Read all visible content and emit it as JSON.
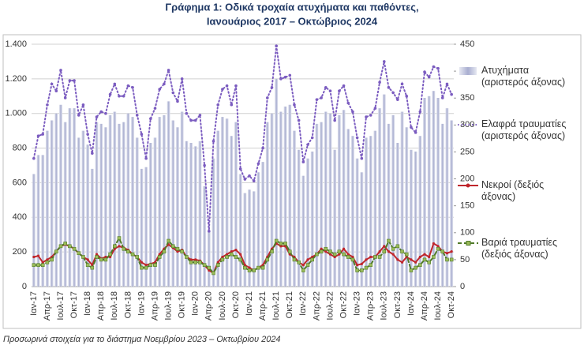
{
  "chart_data": {
    "type": "bar_line",
    "title": "Γράφημα 1: Οδικά τροχαία ατυχήματα και παθόντες,",
    "subtitle": "Ιανουάριος 2017 – Οκτώβριος 2024",
    "note": "Προσωρινά στοιχεία για το διάστημα Νοεμβρίου 2023 – Οκτωβρίου 2024",
    "categories": [
      "Ιαν-17",
      null,
      null,
      "Απρ-17",
      null,
      null,
      "Ιουλ-17",
      null,
      null,
      "Οκτ-17",
      null,
      null,
      "Ιαν-18",
      null,
      null,
      "Απρ-18",
      null,
      null,
      "Ιουλ-18",
      null,
      null,
      "Οκτ-18",
      null,
      null,
      "Ιαν-19",
      null,
      null,
      "Απρ-19",
      null,
      null,
      "Ιουλ-19",
      null,
      null,
      "Οκτ-19",
      null,
      null,
      "Ιαν-20",
      null,
      null,
      "Απρ-20",
      null,
      null,
      "Ιουλ-20",
      null,
      null,
      "Οκτ-20",
      null,
      null,
      "Ιαν-21",
      null,
      null,
      "Απρ-21",
      null,
      null,
      "Ιουλ-21",
      null,
      null,
      "Οκτ-21",
      null,
      null,
      "Ιαν-22",
      null,
      null,
      "Απρ-22",
      null,
      null,
      "Ιουλ-22",
      null,
      null,
      "Οκτ-22",
      null,
      null,
      "Ιαν-23",
      null,
      null,
      "Απρ-23",
      null,
      null,
      "Ιουλ-23",
      null,
      null,
      "Οκτ-23",
      null,
      null,
      "Ιαν-24",
      null,
      null,
      "Απρ-24",
      null,
      null,
      "Ιουλ-24",
      null,
      null,
      "Οκτ-24"
    ],
    "series": [
      {
        "name": "Ατυχήματα (αριστερός άξονας)",
        "kind": "bar",
        "axis": "y",
        "color": "#a9aed0",
        "values": [
          650,
          760,
          760,
          900,
          960,
          1000,
          1050,
          950,
          1030,
          1030,
          860,
          900,
          820,
          680,
          950,
          940,
          920,
          990,
          1010,
          940,
          950,
          1000,
          980,
          860,
          680,
          690,
          830,
          860,
          980,
          990,
          1070,
          960,
          920,
          1010,
          840,
          830,
          810,
          840,
          580,
          320,
          740,
          900,
          980,
          970,
          870,
          950,
          650,
          540,
          560,
          550,
          660,
          720,
          950,
          1000,
          1200,
          1010,
          1040,
          1050,
          900,
          790,
          640,
          740,
          780,
          940,
          950,
          1010,
          1000,
          790,
          990,
          1020,
          910,
          870,
          740,
          660,
          860,
          870,
          900,
          1030,
          1110,
          940,
          990,
          830,
          1010,
          920,
          790,
          780,
          870,
          1090,
          1100,
          1130,
          1090,
          940,
          1030,
          960
        ]
      },
      {
        "name": "Ελαφρά τραυματίες (αριστερός άξονας)",
        "kind": "dotted",
        "axis": "y",
        "color": "#7b5cc0",
        "values": [
          740,
          870,
          880,
          1050,
          1170,
          1130,
          1250,
          1090,
          1190,
          1190,
          990,
          1050,
          880,
          770,
          980,
          1010,
          1000,
          1110,
          1170,
          1100,
          1100,
          1160,
          1150,
          990,
          880,
          740,
          970,
          1030,
          1140,
          1170,
          1250,
          1120,
          1070,
          1200,
          1000,
          960,
          960,
          990,
          700,
          320,
          840,
          1050,
          1140,
          1160,
          1050,
          1160,
          680,
          620,
          640,
          610,
          710,
          800,
          1090,
          1150,
          1390,
          1200,
          1210,
          1220,
          1050,
          960,
          720,
          820,
          860,
          1080,
          1090,
          1150,
          1130,
          960,
          1130,
          1160,
          1060,
          1010,
          860,
          740,
          980,
          990,
          1030,
          1180,
          1300,
          1150,
          1120,
          1080,
          1170,
          1100,
          920,
          890,
          1010,
          1240,
          1210,
          1270,
          1260,
          1090,
          1170,
          1110
        ]
      },
      {
        "name": "Νεκροί (δεξιός άξονας)",
        "kind": "solid",
        "axis": "y2",
        "color": "#c0262c",
        "values": [
          55,
          57,
          45,
          50,
          55,
          65,
          75,
          78,
          75,
          70,
          62,
          55,
          50,
          40,
          60,
          52,
          55,
          55,
          70,
          75,
          72,
          68,
          60,
          55,
          45,
          40,
          42,
          45,
          60,
          70,
          78,
          72,
          65,
          68,
          55,
          50,
          50,
          48,
          40,
          30,
          25,
          45,
          55,
          60,
          65,
          68,
          60,
          40,
          35,
          30,
          35,
          40,
          55,
          70,
          80,
          75,
          75,
          60,
          55,
          45,
          40,
          50,
          55,
          60,
          70,
          65,
          60,
          55,
          60,
          70,
          60,
          55,
          40,
          42,
          50,
          55,
          55,
          65,
          75,
          65,
          60,
          50,
          45,
          55,
          50,
          45,
          55,
          60,
          55,
          80,
          75,
          65,
          62,
          65
        ]
      },
      {
        "name": "Βαριά τραυματίες (δεξιός άξονας)",
        "kind": "dashed",
        "axis": "y2",
        "color": "#4f7a28",
        "values": [
          40,
          40,
          40,
          45,
          50,
          65,
          75,
          80,
          75,
          70,
          62,
          55,
          40,
          35,
          55,
          50,
          50,
          60,
          75,
          90,
          70,
          65,
          60,
          55,
          35,
          35,
          40,
          40,
          55,
          65,
          85,
          75,
          70,
          65,
          55,
          45,
          45,
          45,
          40,
          35,
          25,
          40,
          50,
          55,
          60,
          55,
          50,
          35,
          30,
          30,
          35,
          35,
          50,
          65,
          85,
          80,
          80,
          65,
          50,
          45,
          30,
          40,
          50,
          60,
          65,
          70,
          65,
          60,
          65,
          60,
          55,
          50,
          30,
          30,
          35,
          40,
          55,
          55,
          65,
          85,
          70,
          75,
          65,
          60,
          30,
          35,
          40,
          50,
          45,
          55,
          70,
          65,
          50,
          50
        ]
      }
    ],
    "ylim": [
      0,
      1400
    ],
    "yticks": [
      0,
      200,
      400,
      600,
      800,
      {
        "value": 1000,
        "label": "1.000"
      },
      {
        "value": 1200,
        "label": "1.200"
      },
      {
        "value": 1400,
        "label": "1.400"
      }
    ],
    "y2lim": [
      0,
      450
    ],
    "y2ticks": [
      0,
      50,
      100,
      150,
      200,
      250,
      300,
      350,
      400,
      450
    ],
    "grid": true
  }
}
